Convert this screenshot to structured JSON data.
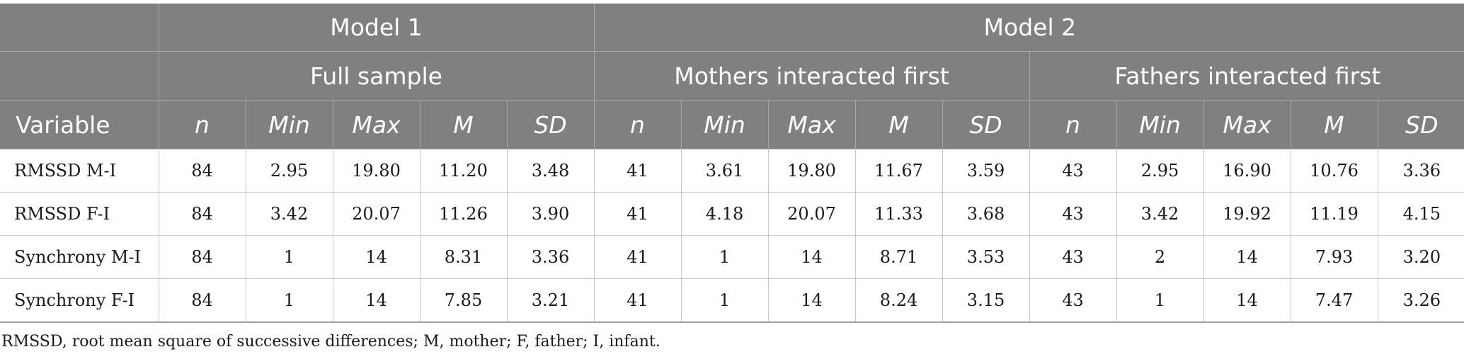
{
  "table": {
    "group_headers": [
      "Model 1",
      "Model 2"
    ],
    "subgroup_headers": [
      "Full sample",
      "Mothers interacted first",
      "Fathers interacted first"
    ],
    "variable_header": "Variable",
    "stat_headers": [
      "n",
      "Min",
      "Max",
      "M",
      "SD"
    ],
    "rows": [
      {
        "variable": "RMSSD M-I",
        "cells": [
          "84",
          "2.95",
          "19.80",
          "11.20",
          "3.48",
          "41",
          "3.61",
          "19.80",
          "11.67",
          "3.59",
          "43",
          "2.95",
          "16.90",
          "10.76",
          "3.36"
        ]
      },
      {
        "variable": "RMSSD F-I",
        "cells": [
          "84",
          "3.42",
          "20.07",
          "11.26",
          "3.90",
          "41",
          "4.18",
          "20.07",
          "11.33",
          "3.68",
          "43",
          "3.42",
          "19.92",
          "11.19",
          "4.15"
        ]
      },
      {
        "variable": "Synchrony M-I",
        "cells": [
          "84",
          "1",
          "14",
          "8.31",
          "3.36",
          "41",
          "1",
          "14",
          "8.71",
          "3.53",
          "43",
          "2",
          "14",
          "7.93",
          "3.20"
        ]
      },
      {
        "variable": "Synchrony F-I",
        "cells": [
          "84",
          "1",
          "14",
          "7.85",
          "3.21",
          "41",
          "1",
          "14",
          "8.24",
          "3.15",
          "43",
          "1",
          "14",
          "7.47",
          "3.26"
        ]
      }
    ]
  },
  "footnote": "RMSSD, root mean square of successive differences; M, mother; F, father; I, infant."
}
